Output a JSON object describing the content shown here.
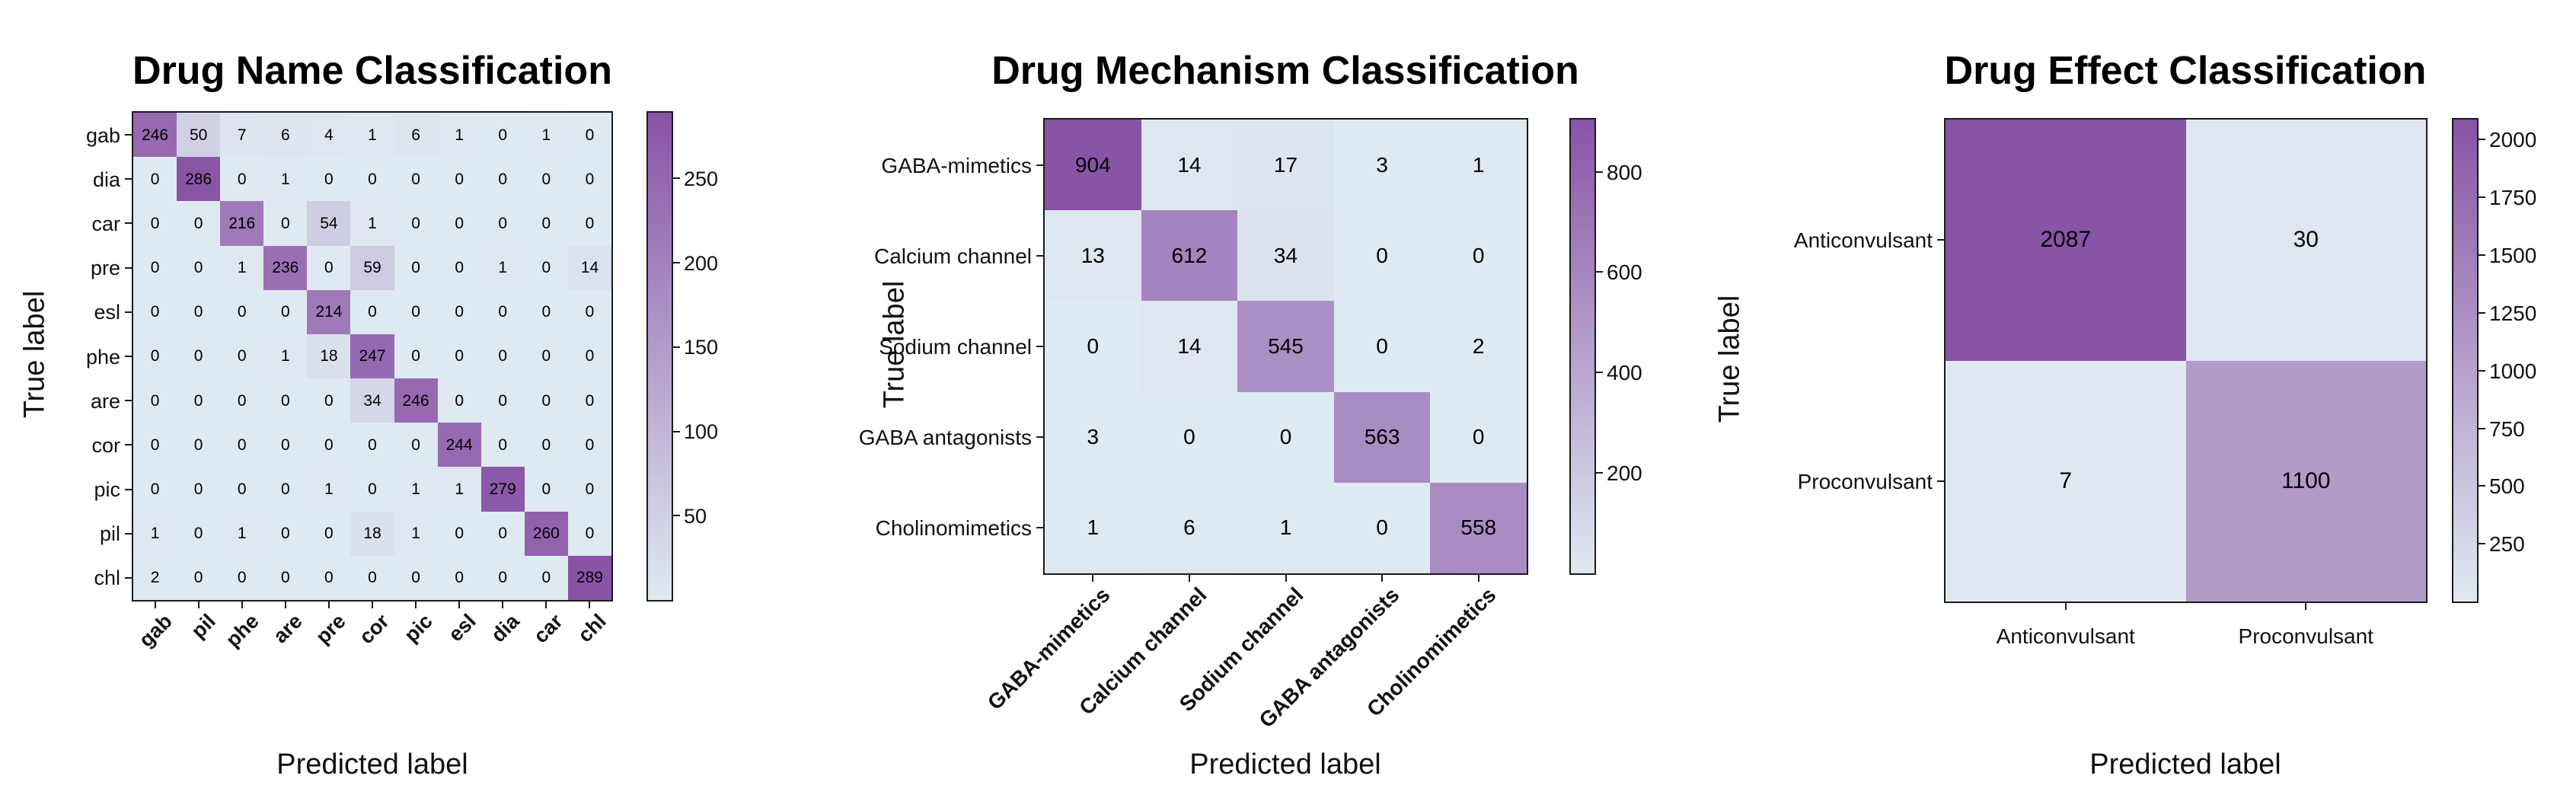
{
  "figure": {
    "background": "#ffffff",
    "colors": {
      "cmap_low": "#dfe9f1",
      "cmap_high": "#8953a6",
      "axis": "#1a1a1a",
      "text": "#111111"
    }
  },
  "chart_data": [
    {
      "type": "heatmap",
      "title": "Drug Name Classification",
      "xlabel": "Predicted label",
      "ylabel": "True label",
      "y_tick_labels": [
        "gab",
        "dia",
        "car",
        "pre",
        "esl",
        "phe",
        "are",
        "cor",
        "pic",
        "pil",
        "chl"
      ],
      "x_tick_labels": [
        "gab",
        "pil",
        "phe",
        "are",
        "pre",
        "cor",
        "pic",
        "esl",
        "dia",
        "car",
        "chl"
      ],
      "x_tick_rotation": 45,
      "matrix": [
        [
          246,
          50,
          7,
          6,
          4,
          1,
          6,
          1,
          0,
          1,
          0
        ],
        [
          0,
          286,
          0,
          1,
          0,
          0,
          0,
          0,
          0,
          0,
          0
        ],
        [
          0,
          0,
          216,
          0,
          54,
          1,
          0,
          0,
          0,
          0,
          0
        ],
        [
          0,
          0,
          1,
          236,
          0,
          59,
          0,
          0,
          1,
          0,
          14
        ],
        [
          0,
          0,
          0,
          0,
          214,
          0,
          0,
          0,
          0,
          0,
          0
        ],
        [
          0,
          0,
          0,
          1,
          18,
          247,
          0,
          0,
          0,
          0,
          0
        ],
        [
          0,
          0,
          0,
          0,
          0,
          34,
          246,
          0,
          0,
          0,
          0
        ],
        [
          0,
          0,
          0,
          0,
          0,
          0,
          0,
          244,
          0,
          0,
          0
        ],
        [
          0,
          0,
          0,
          0,
          1,
          0,
          1,
          1,
          279,
          0,
          0
        ],
        [
          1,
          0,
          1,
          0,
          0,
          18,
          1,
          0,
          0,
          260,
          0
        ],
        [
          2,
          0,
          0,
          0,
          0,
          0,
          0,
          0,
          0,
          0,
          289
        ]
      ],
      "vmin": 0,
      "vmax": 289,
      "colorbar_ticks": [
        50,
        100,
        150,
        200,
        250
      ],
      "grid": false,
      "legend": "colorbar-right"
    },
    {
      "type": "heatmap",
      "title": "Drug Mechanism Classification",
      "xlabel": "Predicted label",
      "ylabel": "True label",
      "y_tick_labels": [
        "GABA-mimetics",
        "Calcium channel",
        "Sodium channel",
        "GABA antagonists",
        "Cholinomimetics"
      ],
      "x_tick_labels": [
        "GABA-mimetics",
        "Calcium channel",
        "Sodium channel",
        "GABA antagonists",
        "Cholinomimetics"
      ],
      "x_tick_rotation": 45,
      "matrix": [
        [
          904,
          14,
          17,
          3,
          1
        ],
        [
          13,
          612,
          34,
          0,
          0
        ],
        [
          0,
          14,
          545,
          0,
          2
        ],
        [
          3,
          0,
          0,
          563,
          0
        ],
        [
          1,
          6,
          1,
          0,
          558
        ]
      ],
      "vmin": 0,
      "vmax": 904,
      "colorbar_ticks": [
        200,
        400,
        600,
        800
      ],
      "grid": false,
      "legend": "colorbar-right"
    },
    {
      "type": "heatmap",
      "title": "Drug Effect Classification",
      "xlabel": "Predicted label",
      "ylabel": "True label",
      "y_tick_labels": [
        "Anticonvulsant",
        "Proconvulsant"
      ],
      "x_tick_labels": [
        "Anticonvulsant",
        "Proconvulsant"
      ],
      "x_tick_rotation": 0,
      "matrix": [
        [
          2087,
          30
        ],
        [
          7,
          1100
        ]
      ],
      "vmin": 0,
      "vmax": 2087,
      "colorbar_ticks": [
        250,
        500,
        750,
        1000,
        1250,
        1500,
        1750,
        2000
      ],
      "grid": false,
      "legend": "colorbar-right"
    }
  ]
}
